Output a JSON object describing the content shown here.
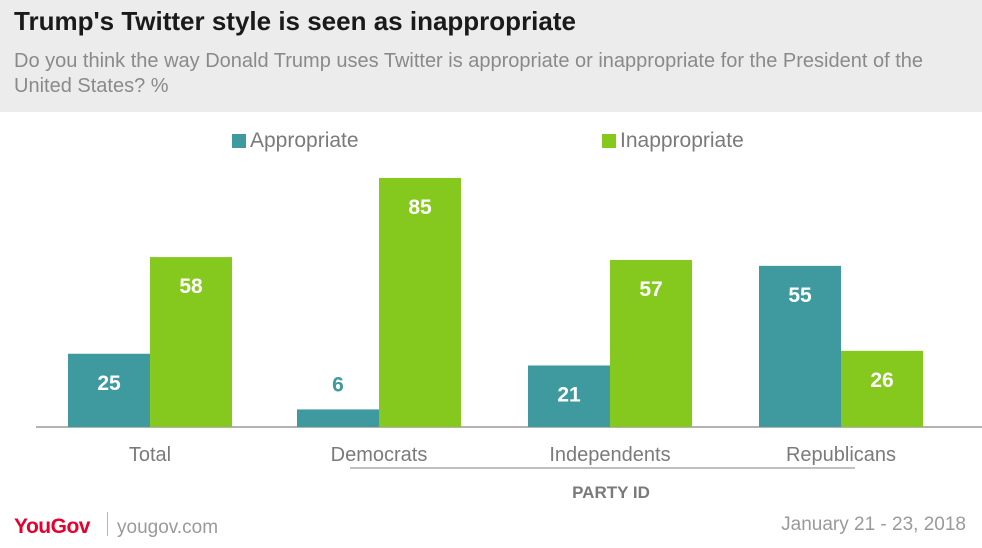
{
  "header": {
    "title": "Trump's Twitter style is seen as inappropriate",
    "subtitle": "Do you think the way Donald Trump uses Twitter is appropriate or inappropriate for the President of the United States? %"
  },
  "legend": {
    "appropriate": "Appropriate",
    "inappropriate": "Inappropriate"
  },
  "colors": {
    "appropriate": "#3f9aa0",
    "inappropriate": "#85c91e"
  },
  "chart_data": {
    "type": "bar",
    "categories": [
      "Total",
      "Democrats",
      "Independents",
      "Republicans"
    ],
    "series": [
      {
        "name": "Appropriate",
        "values": [
          25,
          6,
          21,
          55
        ]
      },
      {
        "name": "Inappropriate",
        "values": [
          58,
          85,
          57,
          26
        ]
      }
    ],
    "group_label": "PARTY ID",
    "ylim": [
      0,
      100
    ],
    "grid": false
  },
  "footer": {
    "brand": "YouGov",
    "site": "yougov.com",
    "date": "January 21 - 23, 2018"
  }
}
